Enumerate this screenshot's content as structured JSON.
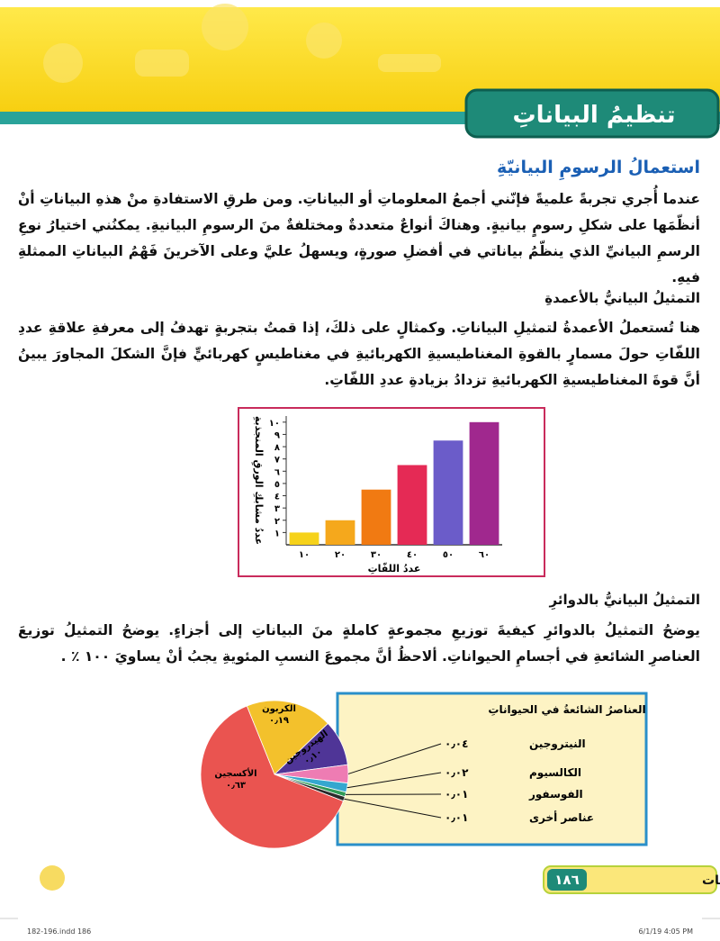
{
  "header": {
    "title": "تنظيمُ البياناتِ"
  },
  "content": {
    "heading": "استعمالُ الرسومِ البيانيّةِ",
    "intro": "عندما أُجري تجربةً علميةً فإنّني أجمعُ المعلوماتِ أو البياناتِ. ومن طرقِ الاستفادةِ منْ هذهِ البياناتِ أنْ أنظّمَها على شكلِ رسومٍ بيانيةٍ. وهناكَ أنواعٌ متعددةٌ ومختلفةٌ منَ الرسومِ البيانيةِ. يمكنُني اختيارُ نوعِ الرسمِ البيانيِّ الذي ينظّمُ بياناتي في أفضلِ صورةٍ، ويسهلُ عليَّ وعلى الآخرينَ فَهْمُ البياناتِ الممثلةِ فيهِ.",
    "bars_heading": "التمثيلُ البيانيُّ بالأعمدةِ",
    "bars_text": "هنا تُستعملُ الأعمدةُ لتمثيلِ البياناتِ. وكمثالٍ على ذلكَ، إذا قمتُ بتجربةٍ تهدفُ إلى معرفةِ علاقةِ عددِ اللفّاتِ حولَ مسمارٍ بالقوةِ المغناطيسيةِ الكهربائيةِ في مغناطيسٍ كهربائيٍّ فإنَّ الشكلَ المجاورَ يبينُ أنَّ قوةَ المغناطيسيةِ الكهربائيةِ تزدادُ بزيادةِ عددِ اللفّاتِ.",
    "pie_heading": "التمثيلُ البيانيُّ بالدوائرِ",
    "pie_text": "يوضحُ التمثيلُ بالدوائرِ كيفيةَ توزيعِ مجموعةٍ كاملةٍ منَ البياناتِ إلى أجزاءٍ. يوضحُ التمثيلُ توزيعَ العناصرِ الشائعةِ في أجسامِ الحيواناتِ. ألاحظُ أنَّ مجموعَ النسبِ المئويةِ يجبُ أنْ يساويَ ١٠٠ ٪ ."
  },
  "chart_data": [
    {
      "type": "bar",
      "y_label": "عددُ مشابكِ الورقِ المنجذبةِ",
      "x_label": "عددُ اللفّاتِ",
      "categories": [
        "١٠",
        "٢٠",
        "٣٠",
        "٤٠",
        "٥٠",
        "٦٠"
      ],
      "values": [
        1,
        2,
        4.5,
        6.5,
        8.5,
        10
      ],
      "colors": [
        "#f6d21a",
        "#f5a81c",
        "#f17a12",
        "#e52a55",
        "#6b5cc9",
        "#a0288e"
      ],
      "ylim": [
        0,
        10.5
      ],
      "yticks": [
        {
          "value": 1,
          "label": "١"
        },
        {
          "value": 2,
          "label": "٢"
        },
        {
          "value": 3,
          "label": "٣"
        },
        {
          "value": 4,
          "label": "٤"
        },
        {
          "value": 5,
          "label": "٥"
        },
        {
          "value": 6,
          "label": "٦"
        },
        {
          "value": 7,
          "label": "٧"
        },
        {
          "value": 8,
          "label": "٨"
        },
        {
          "value": 9,
          "label": "٩"
        },
        {
          "value": 10,
          "label": "١٠"
        }
      ]
    },
    {
      "type": "pie",
      "title": "العناصرُ الشائعةُ في الحيواناتِ",
      "categories": [
        "الكربون",
        "الهيدروجين",
        "النيتروجين",
        "الكالسيوم",
        "الفوسفور",
        "عناصر أخرى",
        "الأكسجين"
      ],
      "values": [
        0.19,
        0.1,
        0.04,
        0.02,
        0.01,
        0.01,
        0.63
      ],
      "value_labels": [
        "٠٫١٩",
        "٠٫١٠",
        "٠٫٠٤",
        "٠٫٠٢",
        "٠٫٠١",
        "٠٫٠١",
        "٠٫٦٣"
      ],
      "colors": [
        "#f3c12c",
        "#4f3597",
        "#ee7cb3",
        "#35a7cf",
        "#2f9b57",
        "#2b2b2b",
        "#ea5450"
      ]
    }
  ],
  "footer": {
    "section": "تنظيم البيانات",
    "page": "١٨٦"
  },
  "print_marks": {
    "file": "182-196.indd   186",
    "date": "6/1/19   4:05 PM"
  }
}
